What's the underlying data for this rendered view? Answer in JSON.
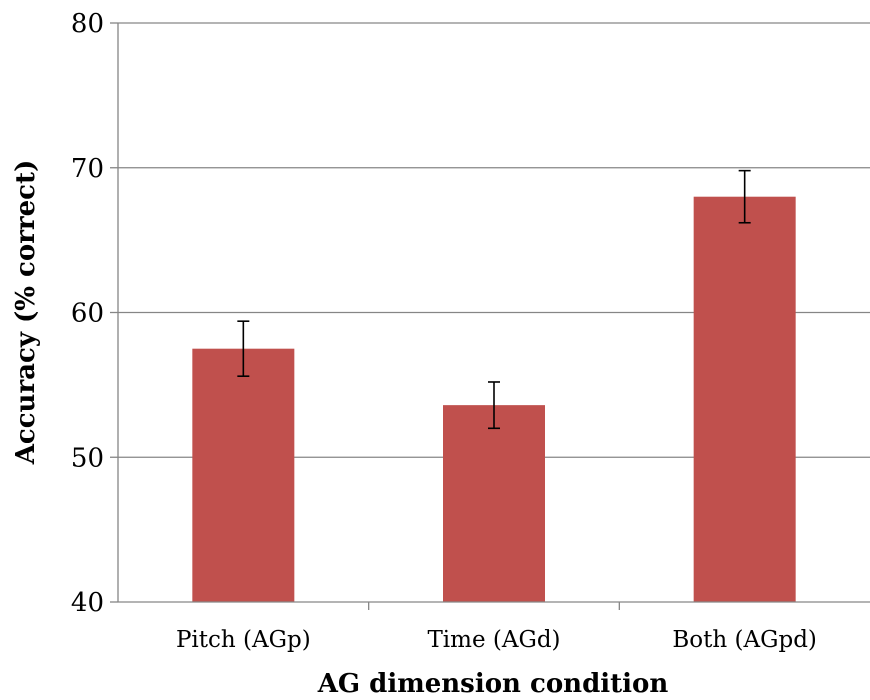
{
  "chart_data": {
    "type": "bar",
    "title": "",
    "xlabel": "AG dimension condition",
    "ylabel": "Accuracy (% correct)",
    "ylim": [
      40,
      80
    ],
    "yticks": [
      40,
      50,
      60,
      70,
      80
    ],
    "grid": true,
    "legend": "none",
    "categories": [
      "Pitch (AGp)",
      "Time (AGd)",
      "Both (AGpd)"
    ],
    "values": [
      57.5,
      53.6,
      68.0
    ],
    "error_bars": [
      {
        "low": 55.6,
        "high": 59.4
      },
      {
        "low": 52.0,
        "high": 55.2
      },
      {
        "low": 66.2,
        "high": 69.8
      }
    ],
    "colors": {
      "bar": "#C0504D",
      "grid": "#868686",
      "axis": "#868686",
      "error": "#000000"
    }
  }
}
